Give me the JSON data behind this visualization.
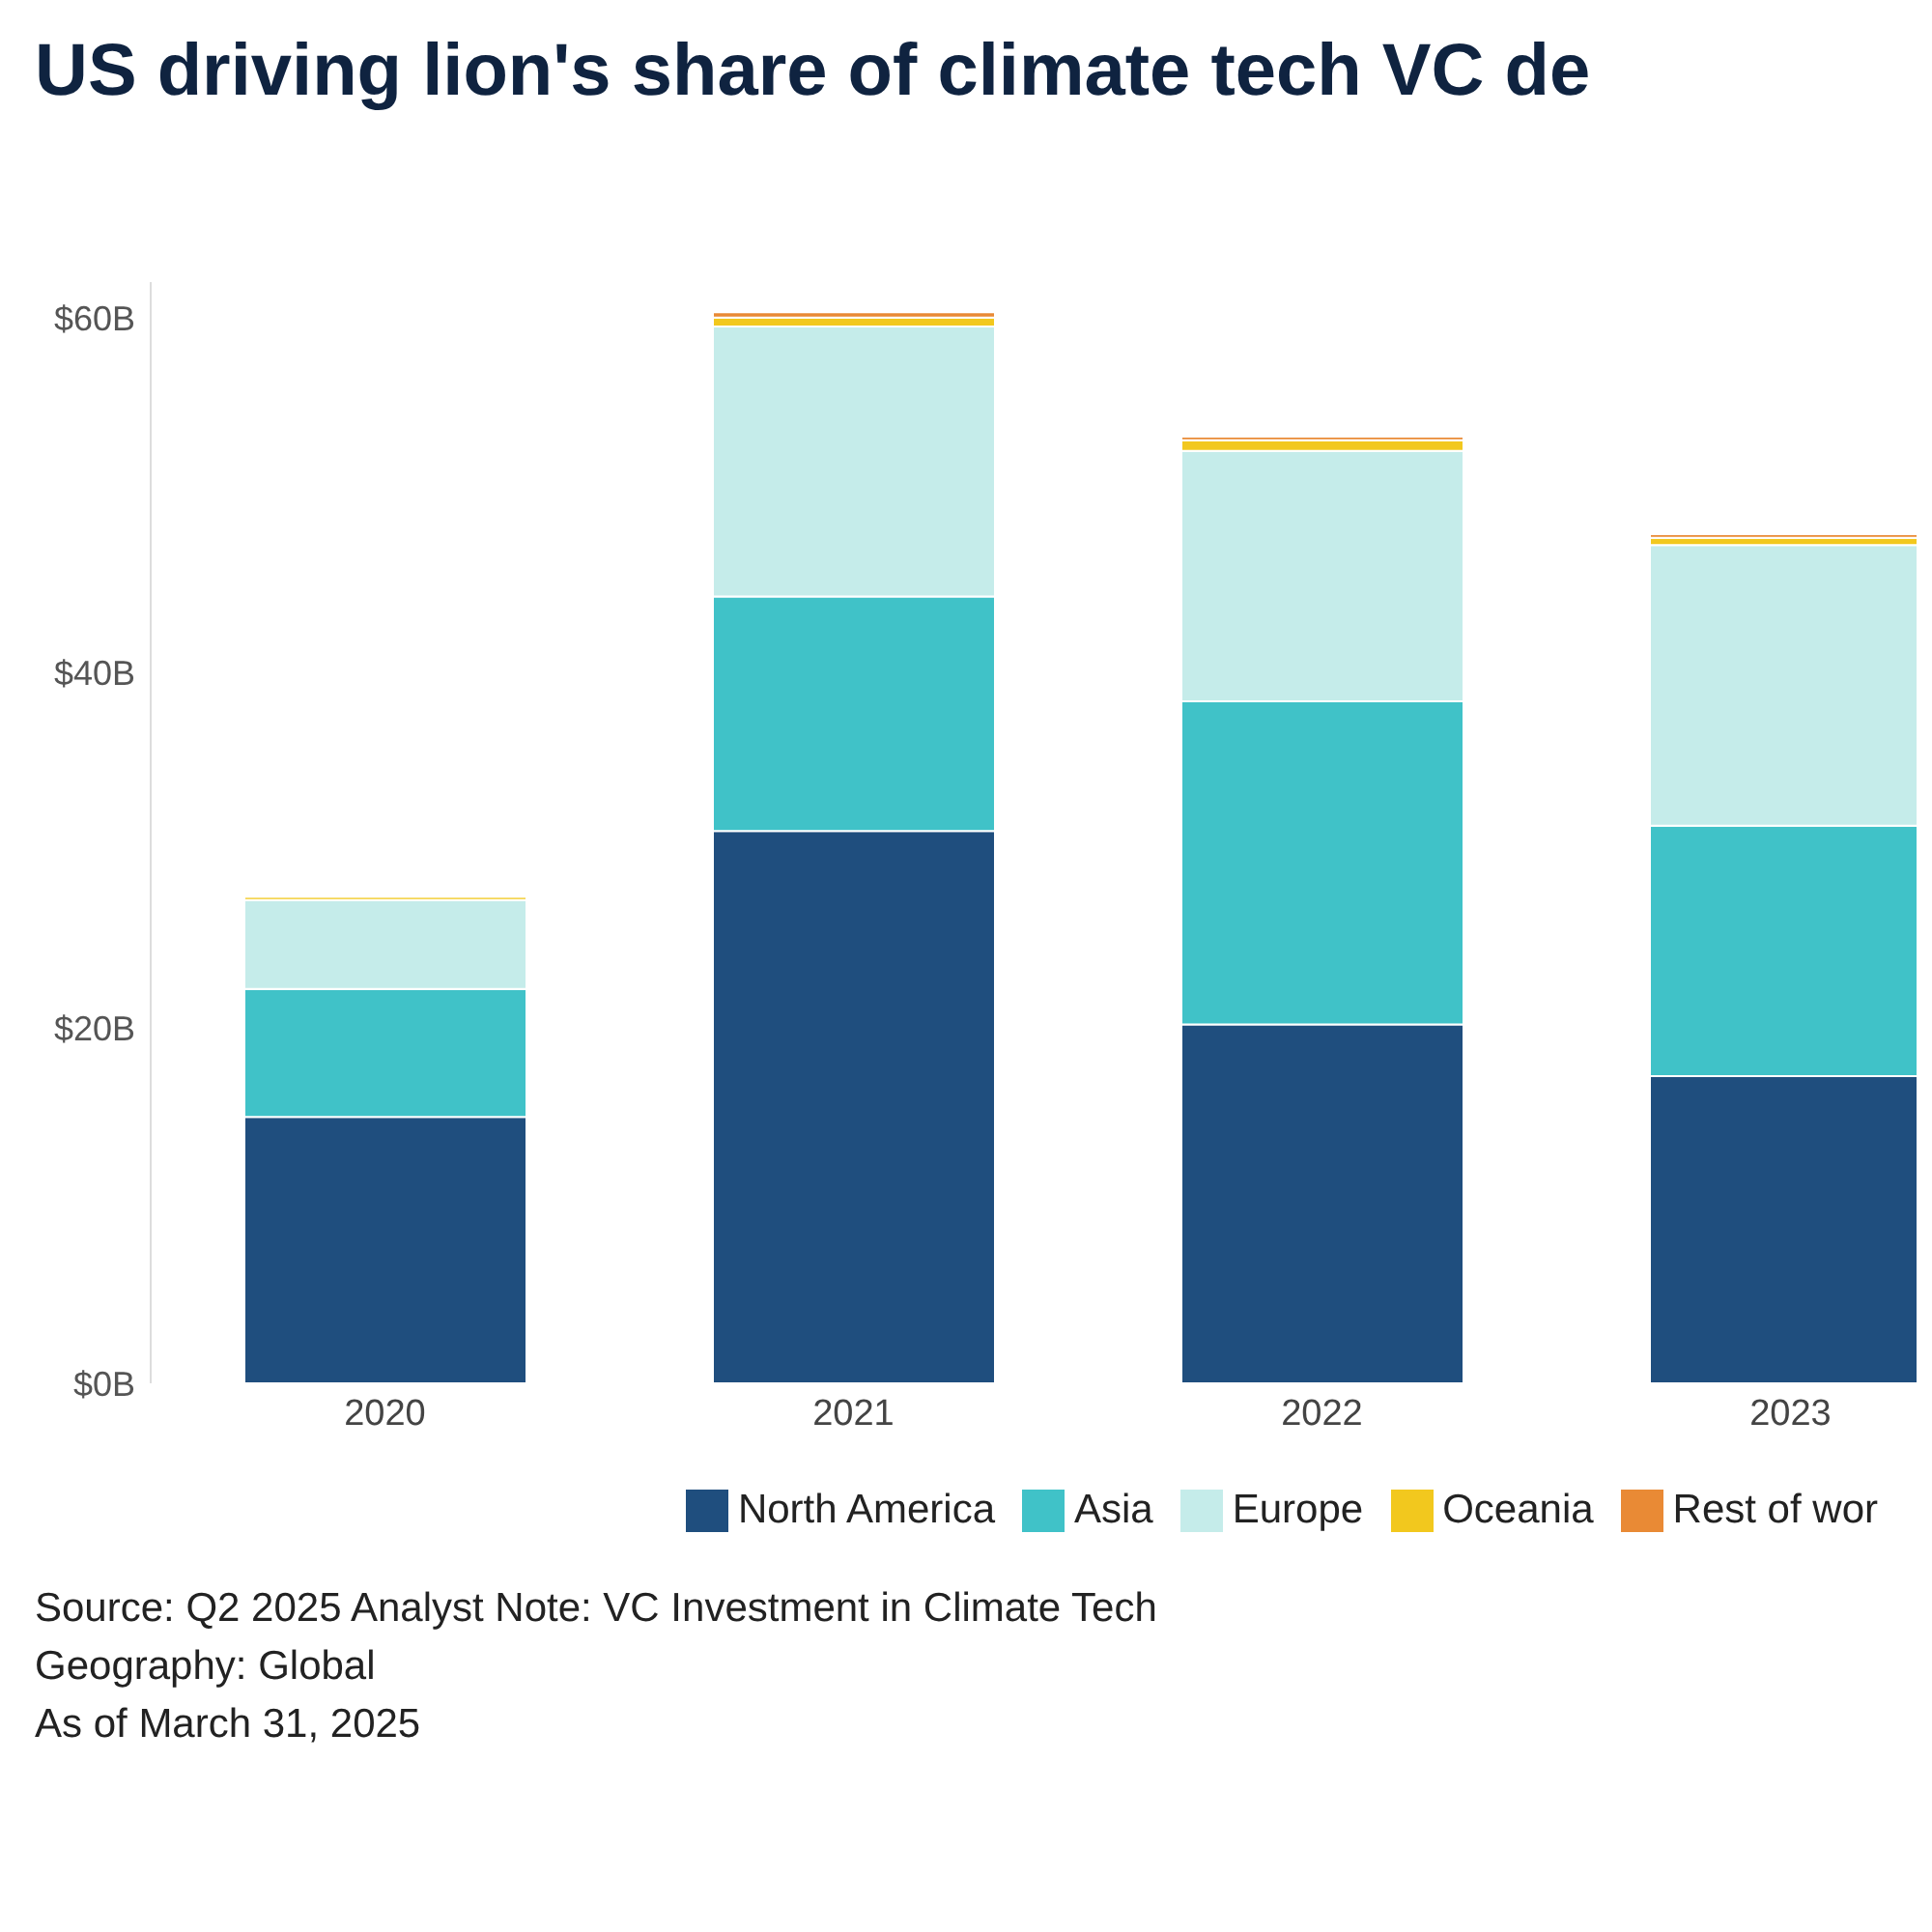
{
  "chart_data": {
    "type": "bar",
    "stacked": true,
    "title": "US driving lion's share of climate tech VC de",
    "categories": [
      "2020",
      "2021",
      "2022",
      "2023"
    ],
    "series": [
      {
        "name": "North America",
        "color": "#1f4e7e",
        "values": [
          15.0,
          31.1,
          20.2,
          17.3
        ]
      },
      {
        "name": "Asia",
        "color": "#40c2c8",
        "values": [
          7.2,
          13.2,
          18.2,
          14.1
        ]
      },
      {
        "name": "Europe",
        "color": "#c5ecea",
        "values": [
          5.0,
          15.2,
          14.1,
          15.8
        ]
      },
      {
        "name": "Oceania",
        "color": "#f2c81e",
        "values": [
          0.2,
          0.5,
          0.6,
          0.4
        ]
      },
      {
        "name": "Rest of wor",
        "color": "#e98a35",
        "values": [
          0.1,
          0.3,
          0.2,
          0.2
        ]
      }
    ],
    "ylim": [
      0,
      62
    ],
    "yticks": [
      {
        "value": 0,
        "label": "$0B"
      },
      {
        "value": 20,
        "label": "$20B"
      },
      {
        "value": 40,
        "label": "$40B"
      },
      {
        "value": 60,
        "label": "$60B"
      }
    ],
    "grid": false,
    "legend": "bottom",
    "annotations": [
      "Source: Q2 2025 Analyst Note: VC Investment in Climate Tech",
      "Geography: Global",
      "As of March 31, 2025"
    ]
  }
}
